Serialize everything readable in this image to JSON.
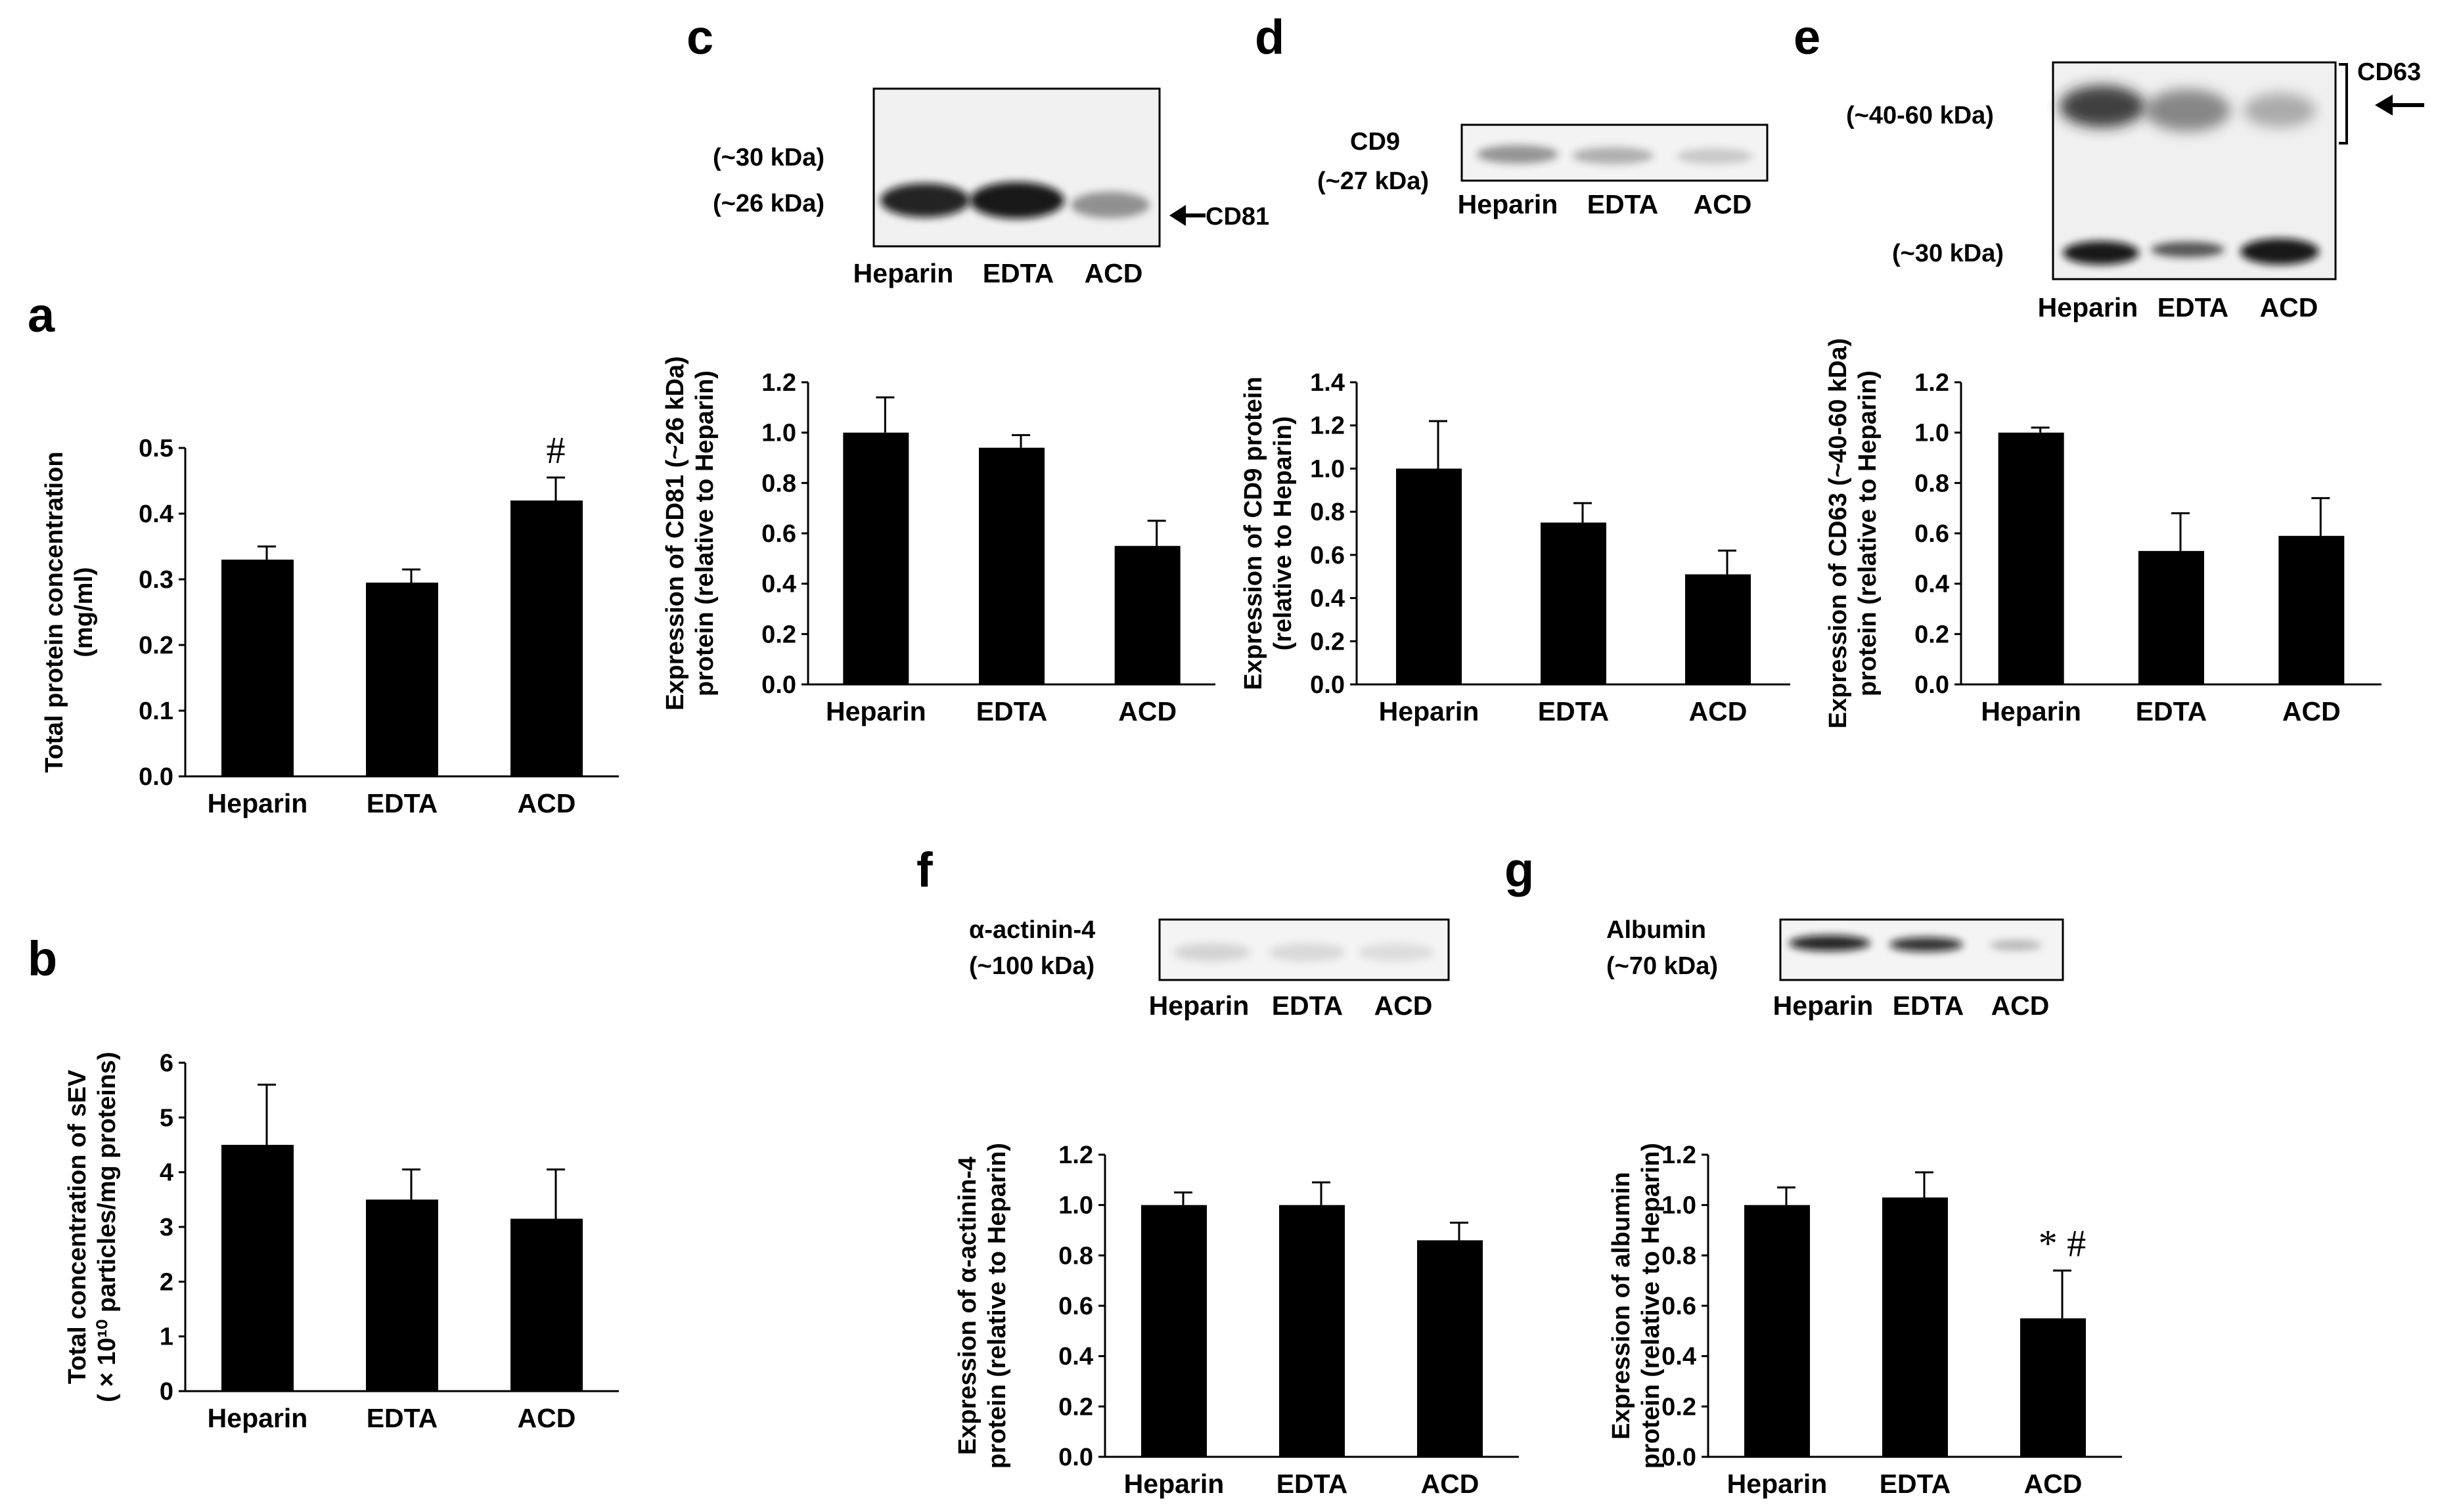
{
  "chart_data": [
    {
      "id": "a",
      "type": "bar",
      "panel_label": "a",
      "categories": [
        "Heparin",
        "EDTA",
        "ACD"
      ],
      "values": [
        0.33,
        0.295,
        0.42
      ],
      "errors": [
        0.02,
        0.02,
        0.035
      ],
      "ylabel_lines": [
        "Total protein concentration",
        "(mg/ml)"
      ],
      "ylim": [
        0,
        0.5
      ],
      "yticks": [
        "0.0",
        "0.1",
        "0.2",
        "0.3",
        "0.4",
        "0.5"
      ],
      "significance": [
        "",
        "",
        "#"
      ]
    },
    {
      "id": "b",
      "type": "bar",
      "panel_label": "b",
      "categories": [
        "Heparin",
        "EDTA",
        "ACD"
      ],
      "values": [
        4.5,
        3.5,
        3.15
      ],
      "errors": [
        1.1,
        0.55,
        0.9
      ],
      "ylabel_lines": [
        "Total concentration of sEV",
        "( × 10¹⁰ particles/mg proteins)"
      ],
      "ylim": [
        0,
        6
      ],
      "yticks": [
        "0",
        "1",
        "2",
        "3",
        "4",
        "5",
        "6"
      ],
      "significance": [
        "",
        "",
        ""
      ]
    },
    {
      "id": "c",
      "type": "bar",
      "panel_label": "c",
      "categories": [
        "Heparin",
        "EDTA",
        "ACD"
      ],
      "values": [
        1.0,
        0.94,
        0.55
      ],
      "errors": [
        0.14,
        0.05,
        0.1
      ],
      "ylabel_lines": [
        "Expression of CD81 (~26 kDa)",
        "protein (relative to Heparin)"
      ],
      "ylim": [
        0,
        1.2
      ],
      "yticks": [
        "0.0",
        "0.2",
        "0.4",
        "0.6",
        "0.8",
        "1.0",
        "1.2"
      ],
      "significance": [
        "",
        "",
        ""
      ]
    },
    {
      "id": "d",
      "type": "bar",
      "panel_label": "d",
      "categories": [
        "Heparin",
        "EDTA",
        "ACD"
      ],
      "values": [
        1.0,
        0.75,
        0.51
      ],
      "errors": [
        0.22,
        0.09,
        0.11
      ],
      "ylabel_lines": [
        "Expression of CD9 protein",
        "(relative to Heparin)"
      ],
      "ylim": [
        0,
        1.4
      ],
      "yticks": [
        "0.0",
        "0.2",
        "0.4",
        "0.6",
        "0.8",
        "1.0",
        "1.2",
        "1.4"
      ],
      "significance": [
        "",
        "",
        ""
      ]
    },
    {
      "id": "e",
      "type": "bar",
      "panel_label": "e",
      "categories": [
        "Heparin",
        "EDTA",
        "ACD"
      ],
      "values": [
        1.0,
        0.53,
        0.59
      ],
      "errors": [
        0.02,
        0.15,
        0.15
      ],
      "ylabel_lines": [
        "Expression of CD63 (~40-60 kDa)",
        "protein (relative to Heparin)"
      ],
      "ylim": [
        0,
        1.2
      ],
      "yticks": [
        "0.0",
        "0.2",
        "0.4",
        "0.6",
        "0.8",
        "1.0",
        "1.2"
      ],
      "significance": [
        "",
        "",
        ""
      ]
    },
    {
      "id": "f",
      "type": "bar",
      "panel_label": "f",
      "categories": [
        "Heparin",
        "EDTA",
        "ACD"
      ],
      "values": [
        1.0,
        1.0,
        0.86
      ],
      "errors": [
        0.05,
        0.09,
        0.07
      ],
      "ylabel_lines": [
        "Expression of α-actinin-4",
        "protein (relative to Heparin)"
      ],
      "ylim": [
        0,
        1.2
      ],
      "yticks": [
        "0.0",
        "0.2",
        "0.4",
        "0.6",
        "0.8",
        "1.0",
        "1.2"
      ],
      "significance": [
        "",
        "",
        ""
      ]
    },
    {
      "id": "g",
      "type": "bar",
      "panel_label": "g",
      "categories": [
        "Heparin",
        "EDTA",
        "ACD"
      ],
      "values": [
        1.0,
        1.03,
        0.55
      ],
      "errors": [
        0.07,
        0.1,
        0.19
      ],
      "ylabel_lines": [
        "Expression of albumin",
        "protein (relative to Heparin)"
      ],
      "ylim": [
        0,
        1.2
      ],
      "yticks": [
        "0.0",
        "0.2",
        "0.4",
        "0.6",
        "0.8",
        "1.0",
        "1.2"
      ],
      "significance": [
        "",
        "",
        "* #"
      ]
    }
  ],
  "blots": {
    "c": {
      "lanes": [
        "Heparin",
        "EDTA",
        "ACD"
      ],
      "labels": [
        "(~30 kDa)",
        "(~26 kDa)"
      ],
      "target": "CD81",
      "band_intensity": [
        0.9,
        0.95,
        0.5
      ]
    },
    "d": {
      "lanes": [
        "Heparin",
        "EDTA",
        "ACD"
      ],
      "labels": [
        "CD9",
        "(~27 kDa)"
      ],
      "band_intensity": [
        0.45,
        0.32,
        0.2
      ]
    },
    "e": {
      "lanes": [
        "Heparin",
        "EDTA",
        "ACD"
      ],
      "labels": [
        "(~40-60 kDa)",
        "(~30 kDa)"
      ],
      "target": "CD63",
      "band_intensity": [
        0.85,
        0.55,
        0.4
      ]
    },
    "f": {
      "lanes": [
        "Heparin",
        "EDTA",
        "ACD"
      ],
      "labels": [
        "α-actinin-4",
        "(~100 kDa)"
      ],
      "band_intensity": [
        0.15,
        0.12,
        0.1
      ]
    },
    "g": {
      "lanes": [
        "Heparin",
        "EDTA",
        "ACD"
      ],
      "labels": [
        "Albumin",
        "(~70 kDa)"
      ],
      "band_intensity": [
        0.9,
        0.85,
        0.3
      ]
    }
  }
}
